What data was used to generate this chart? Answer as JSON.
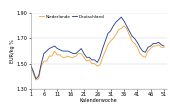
{
  "title": "",
  "xlabel": "Kalenderwoche",
  "ylabel": "EUR/kg %",
  "ylim": [
    1.3,
    1.9
  ],
  "yticks": [
    1.3,
    1.5,
    1.7,
    1.9
  ],
  "xticks": [
    1,
    6,
    11,
    16,
    21,
    26,
    31,
    36,
    41,
    46,
    51
  ],
  "legend_labels": [
    "Niederlande",
    "Deutschland"
  ],
  "line_colors": [
    "#f5a033",
    "#1a3a8a"
  ],
  "netherlands": [
    1.49,
    1.42,
    1.37,
    1.38,
    1.48,
    1.52,
    1.52,
    1.56,
    1.56,
    1.6,
    1.57,
    1.57,
    1.55,
    1.55,
    1.56,
    1.55,
    1.55,
    1.56,
    1.58,
    1.58,
    1.55,
    1.52,
    1.53,
    1.5,
    1.5,
    1.48,
    1.49,
    1.55,
    1.6,
    1.65,
    1.68,
    1.7,
    1.73,
    1.77,
    1.78,
    1.8,
    1.78,
    1.73,
    1.68,
    1.66,
    1.63,
    1.58,
    1.56,
    1.55,
    1.6,
    1.62,
    1.64,
    1.64,
    1.65,
    1.63,
    1.63
  ],
  "germany": [
    1.49,
    1.44,
    1.38,
    1.4,
    1.5,
    1.58,
    1.6,
    1.62,
    1.63,
    1.64,
    1.62,
    1.61,
    1.6,
    1.6,
    1.6,
    1.59,
    1.58,
    1.58,
    1.6,
    1.62,
    1.58,
    1.55,
    1.55,
    1.53,
    1.53,
    1.51,
    1.55,
    1.62,
    1.68,
    1.74,
    1.76,
    1.8,
    1.83,
    1.85,
    1.87,
    1.84,
    1.8,
    1.76,
    1.72,
    1.7,
    1.67,
    1.63,
    1.6,
    1.59,
    1.63,
    1.64,
    1.66,
    1.66,
    1.67,
    1.65,
    1.64
  ],
  "figsize": [
    1.7,
    1.11
  ],
  "dpi": 100
}
